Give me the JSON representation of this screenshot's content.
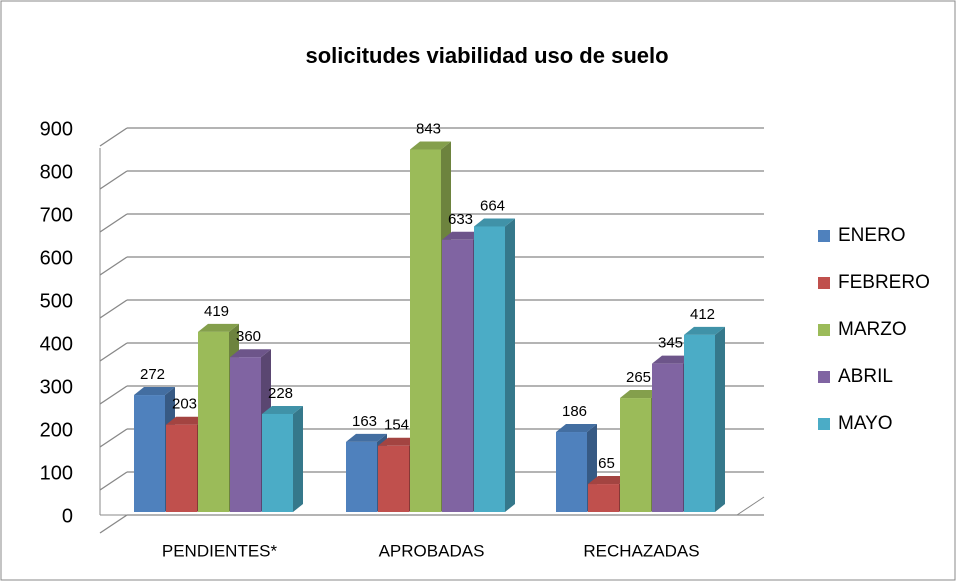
{
  "chart_data": {
    "type": "bar3d",
    "title": "solicitudes viabilidad uso de suelo",
    "categories": [
      "PENDIENTES*",
      "APROBADAS",
      "RECHAZADAS"
    ],
    "series": [
      {
        "name": "ENERO",
        "color": "#4f81bd",
        "values": [
          272,
          163,
          186
        ]
      },
      {
        "name": "FEBRERO",
        "color": "#c0504d",
        "values": [
          203,
          154,
          65
        ]
      },
      {
        "name": "MARZO",
        "color": "#9bbb59",
        "values": [
          419,
          843,
          265
        ]
      },
      {
        "name": "ABRIL",
        "color": "#8064a2",
        "values": [
          360,
          633,
          345
        ]
      },
      {
        "name": "MAYO",
        "color": "#4bacc6",
        "values": [
          228,
          664,
          412
        ]
      }
    ],
    "ylim": [
      0,
      900
    ],
    "yticks": [
      0,
      100,
      200,
      300,
      400,
      500,
      600,
      700,
      800,
      900
    ],
    "grid": true,
    "legend": "right"
  }
}
